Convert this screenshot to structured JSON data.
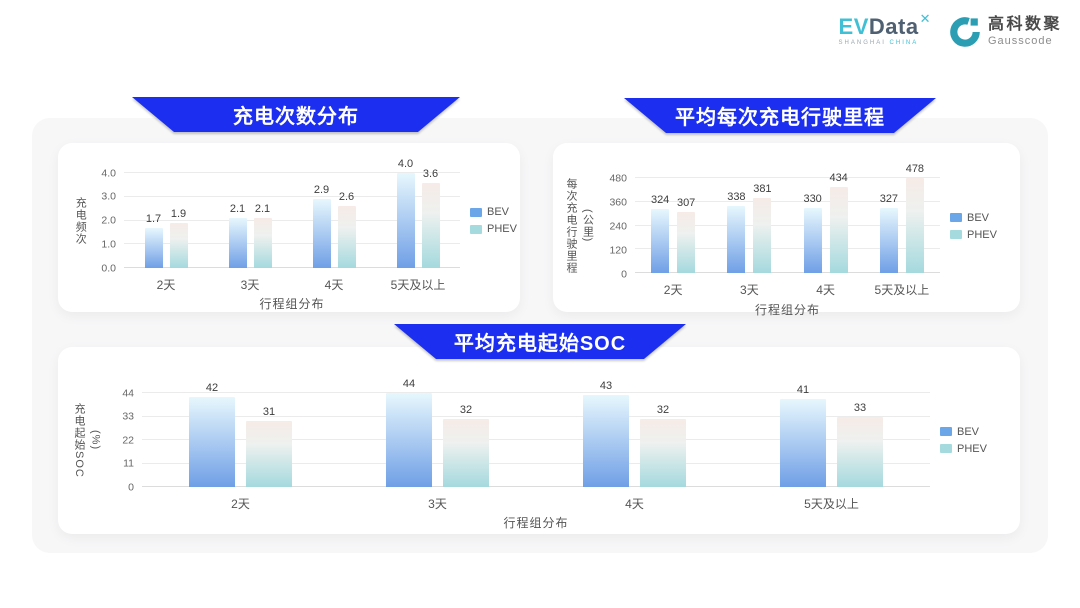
{
  "header": {
    "evdata": {
      "ev": "EV",
      "data": "Data",
      "x_icon": "✕",
      "sub_left": "SHANGHAI",
      "sub_right": "CHINA"
    },
    "gausscode": {
      "cn": "高科数聚",
      "en": "Gausscode"
    }
  },
  "legend": {
    "bev": "BEV",
    "phev": "PHEV"
  },
  "colors": {
    "banner_blue": "#1c2ff0",
    "panel_bg": "#f7f7f8",
    "bev_top": "#e7f7fd",
    "bev_bottom": "#6f9fe6",
    "phev_top": "#f6ebe7",
    "phev_mid": "#eef1ef",
    "phev_bottom": "#a4d9de",
    "legend_bev": "#6ba7e8",
    "legend_phev": "#a5dade",
    "evdata_teal": "#41c0d5",
    "evdata_dark": "#4e6071",
    "gausscode_teal": "#2b9eb4"
  },
  "chart_data": [
    {
      "type": "bar",
      "title": "充电次数分布",
      "ylabel": "充电频次",
      "xlabel": "行程组分布",
      "categories": [
        "2天",
        "3天",
        "4天",
        "5天及以上"
      ],
      "ticks": [
        "0.0",
        "1.0",
        "2.0",
        "3.0",
        "4.0"
      ],
      "ylim": [
        0,
        4.0
      ],
      "grid": true,
      "legend_position": "right",
      "series": [
        {
          "name": "BEV",
          "values": [
            1.7,
            2.1,
            2.9,
            4.0
          ],
          "labels": [
            "1.7",
            "2.1",
            "2.9",
            "4.0"
          ]
        },
        {
          "name": "PHEV",
          "values": [
            1.9,
            2.1,
            2.6,
            3.6
          ],
          "labels": [
            "1.9",
            "2.1",
            "2.6",
            "3.6"
          ]
        }
      ]
    },
    {
      "type": "bar",
      "title": "平均每次充电行驶里程",
      "ylabel": "每次充电行驶里程\n(公里)",
      "xlabel": "行程组分布",
      "categories": [
        "2天",
        "3天",
        "4天",
        "5天及以上"
      ],
      "ticks": [
        "0",
        "120",
        "240",
        "360",
        "480"
      ],
      "ylim": [
        0,
        480
      ],
      "grid": true,
      "legend_position": "right",
      "series": [
        {
          "name": "BEV",
          "values": [
            324,
            338,
            330,
            327
          ],
          "labels": [
            "324",
            "338",
            "330",
            "327"
          ]
        },
        {
          "name": "PHEV",
          "values": [
            307,
            381,
            434,
            478
          ],
          "labels": [
            "307",
            "381",
            "434",
            "478"
          ]
        }
      ]
    },
    {
      "type": "bar",
      "title": "平均充电起始SOC",
      "ylabel": "充电起始SOC\n(%)",
      "xlabel": "行程组分布",
      "categories": [
        "2天",
        "3天",
        "4天",
        "5天及以上"
      ],
      "ticks": [
        "0",
        "11",
        "22",
        "33",
        "44"
      ],
      "ylim": [
        0,
        44
      ],
      "grid": true,
      "legend_position": "right",
      "series": [
        {
          "name": "BEV",
          "values": [
            42,
            44,
            43,
            41
          ],
          "labels": [
            "42",
            "44",
            "43",
            "41"
          ]
        },
        {
          "name": "PHEV",
          "values": [
            31,
            32,
            32,
            33
          ],
          "labels": [
            "31",
            "32",
            "32",
            "33"
          ]
        }
      ]
    }
  ]
}
